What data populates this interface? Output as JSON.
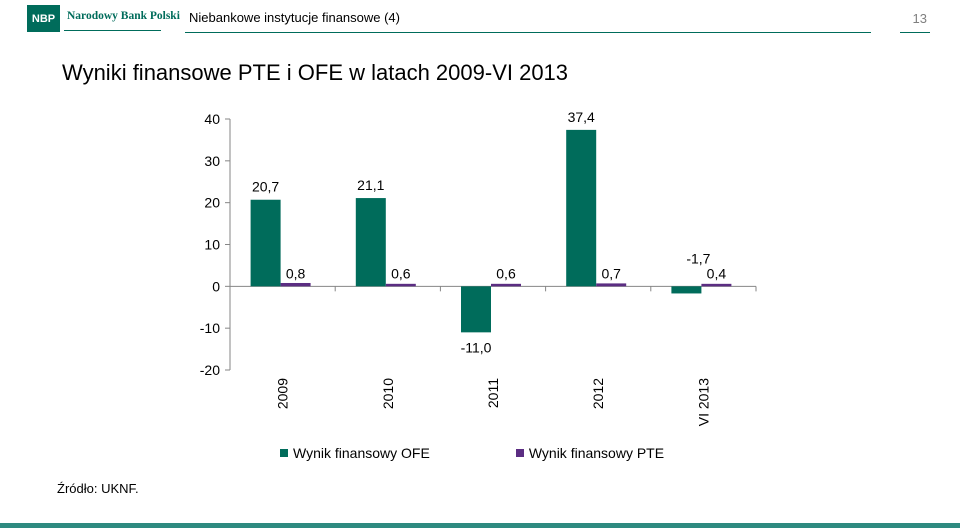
{
  "header": {
    "logo_badge": "NBP",
    "logo_name": "Narodowy Bank Polski",
    "section": "Niebankowe instytucje finansowe (4)",
    "page_number": "13"
  },
  "title": "Wyniki finansowe PTE i OFE w latach 2009-VI 2013",
  "source": "Źródło: UKNF.",
  "colors": {
    "ofe": "#006c5b",
    "pte": "#5b2d82",
    "brand": "#006c5b"
  },
  "chart_data": {
    "type": "bar",
    "categories": [
      "2009",
      "2010",
      "2011",
      "2012",
      "VI 2013"
    ],
    "series": [
      {
        "name": "Wynik finansowy OFE",
        "values": [
          20.7,
          21.1,
          -11.0,
          37.4,
          -1.7
        ],
        "labels": [
          "20,7",
          "21,1",
          "-11,0",
          "37,4",
          "-1,7"
        ]
      },
      {
        "name": "Wynik finansowy PTE",
        "values": [
          0.8,
          0.6,
          0.6,
          0.7,
          0.4
        ],
        "labels": [
          "0,8",
          "0,6",
          "0,6",
          "0,7",
          "0,4"
        ]
      }
    ],
    "yticks": [
      40,
      30,
      20,
      10,
      0,
      -10,
      -20
    ],
    "ylim": [
      -20,
      40
    ],
    "grid": false,
    "legend_position": "bottom"
  }
}
